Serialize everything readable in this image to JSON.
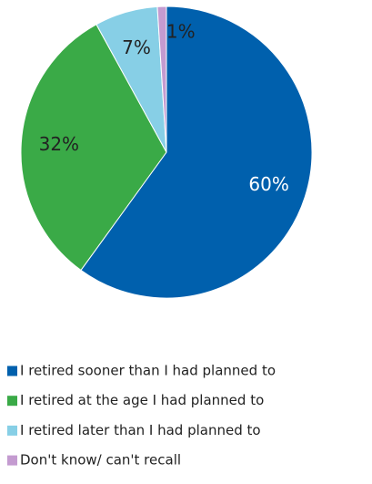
{
  "chart_data": {
    "type": "pie",
    "categories": [
      "I retired sooner than I had planned to",
      "I retired at the age I had planned to",
      "I retired later than I had planned to",
      "Don't know/ can't recall"
    ],
    "values": [
      60,
      32,
      7,
      1
    ],
    "value_labels": [
      "60%",
      "32%",
      "7%",
      "1%"
    ],
    "colors": [
      "#0060ad",
      "#3aaa47",
      "#87cfe6",
      "#c49bd0"
    ],
    "legend": "bottom"
  }
}
